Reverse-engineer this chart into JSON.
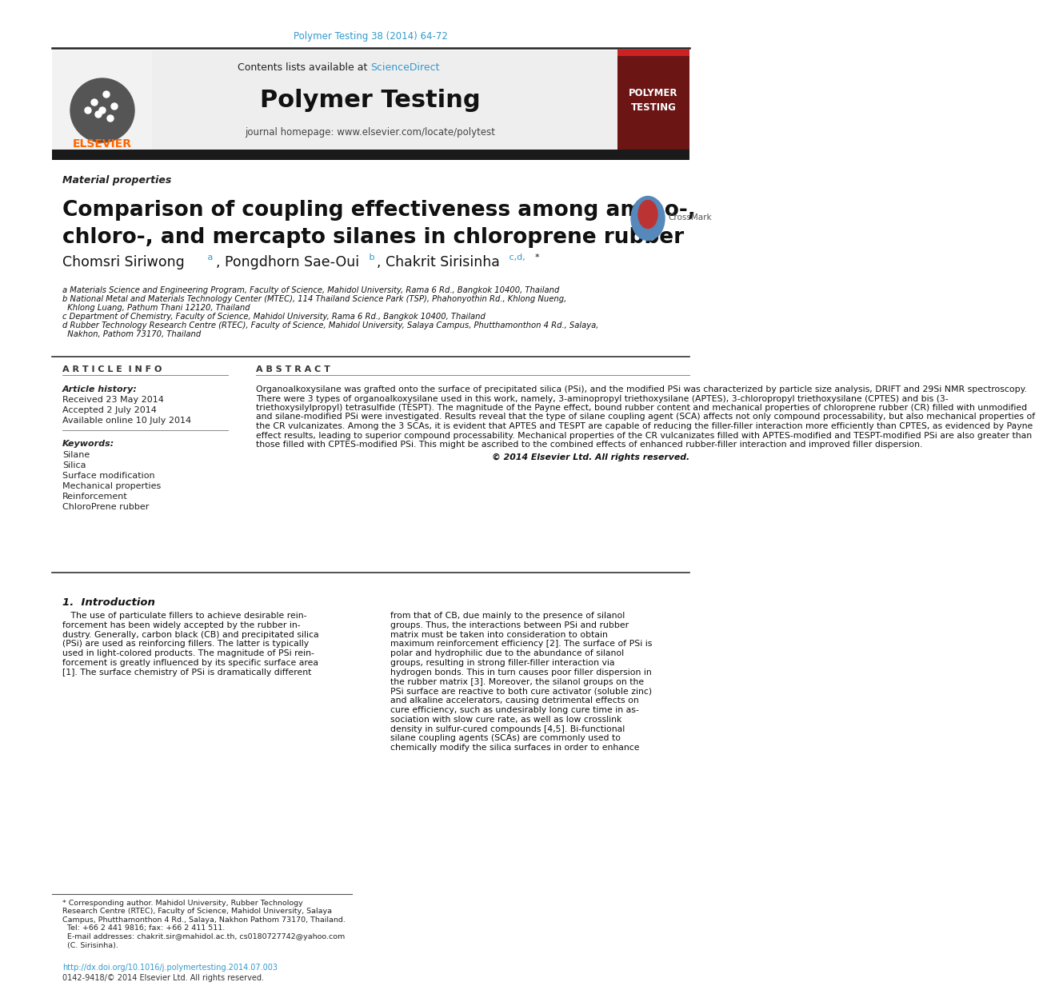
{
  "journal_ref": "Polymer Testing 38 (2014) 64-72",
  "journal_ref_color": "#3399cc",
  "contents_text": "Contents lists available at ",
  "science_direct": "ScienceDirect",
  "science_direct_color": "#3399cc",
  "journal_name": "Polymer Testing",
  "homepage_text": "journal homepage: www.elsevier.com/locate/polytest",
  "section_label": "Material properties",
  "article_title_line1": "Comparison of coupling effectiveness among amino-,",
  "article_title_line2": "chloro-, and mercapto silanes in chloroprene rubber",
  "authors_plain": "Chomsri Siriwong",
  "authors_a": " a",
  "authors_mid1": ", Pongdhorn Sae-Oui",
  "authors_b": " b",
  "authors_mid2": ", Chakrit Sirisinha",
  "authors_cd": " c,d,",
  "authors_star": "*",
  "affil_a": "a Materials Science and Engineering Program, Faculty of Science, Mahidol University, Rama 6 Rd., Bangkok 10400, Thailand",
  "affil_b1": "b National Metal and Materials Technology Center (MTEC), 114 Thailand Science Park (TSP), Phahonyothin Rd., Khlong Nueng,",
  "affil_b2": "  Khlong Luang, Pathum Thani 12120, Thailand",
  "affil_c": "c Department of Chemistry, Faculty of Science, Mahidol University, Rama 6 Rd., Bangkok 10400, Thailand",
  "affil_d1": "d Rubber Technology Research Centre (RTEC), Faculty of Science, Mahidol University, Salaya Campus, Phutthamonthon 4 Rd., Salaya,",
  "affil_d2": "  Nakhon, Pathom 73170, Thailand",
  "article_info_title": "A R T I C L E  I N F O",
  "abstract_title": "A B S T R A C T",
  "article_history_label": "Article history:",
  "received": "Received 23 May 2014",
  "accepted": "Accepted 2 July 2014",
  "available": "Available online 10 July 2014",
  "keywords_label": "Keywords:",
  "keywords": [
    "Silane",
    "Silica",
    "Surface modification",
    "Mechanical properties",
    "Reinforcement",
    "ChloroPrene rubber"
  ],
  "abstract_lines": [
    "Organoalkoxysilane was grafted onto the surface of precipitated silica (PSi), and the modified PSi was characterized by particle size analysis, DRIFT and 29Si NMR spectroscopy.",
    "There were 3 types of organoalkoxysilane used in this work, namely, 3-aminopropyl triethoxysilane (APTES), 3-chloropropyl triethoxysilane (CPTES) and bis (3-",
    "triethoxysilylpropyl) tetrasulfide (TESPT). The magnitude of the Payne effect, bound rubber content and mechanical properties of chloroprene rubber (CR) filled with unmodified",
    "and silane-modified PSi were investigated. Results reveal that the type of silane coupling agent (SCA) affects not only compound processability, but also mechanical properties of",
    "the CR vulcanizates. Among the 3 SCAs, it is evident that APTES and TESPT are capable of reducing the filler-filler interaction more efficiently than CPTES, as evidenced by Payne",
    "effect results, leading to superior compound processability. Mechanical properties of the CR vulcanizates filled with APTES-modified and TESPT-modified PSi are also greater than",
    "those filled with CPTES-modified PSi. This might be ascribed to the combined effects of enhanced rubber-filler interaction and improved filler dispersion."
  ],
  "copyright_text": "© 2014 Elsevier Ltd. All rights reserved.",
  "intro_title": "1.  Introduction",
  "intro_col1_lines": [
    "   The use of particulate fillers to achieve desirable rein-",
    "forcement has been widely accepted by the rubber in-",
    "dustry. Generally, carbon black (CB) and precipitated silica",
    "(PSi) are used as reinforcing fillers. The latter is typically",
    "used in light-colored products. The magnitude of PSi rein-",
    "forcement is greatly influenced by its specific surface area",
    "[1]. The surface chemistry of PSi is dramatically different"
  ],
  "intro_col2_lines": [
    "from that of CB, due mainly to the presence of silanol",
    "groups. Thus, the interactions between PSi and rubber",
    "matrix must be taken into consideration to obtain",
    "maximum reinforcement efficiency [2]. The surface of PSi is",
    "polar and hydrophilic due to the abundance of silanol",
    "groups, resulting in strong filler-filler interaction via",
    "hydrogen bonds. This in turn causes poor filler dispersion in",
    "the rubber matrix [3]. Moreover, the silanol groups on the",
    "PSi surface are reactive to both cure activator (soluble zinc)",
    "and alkaline accelerators, causing detrimental effects on",
    "cure efficiency, such as undesirably long cure time in as-",
    "sociation with slow cure rate, as well as low crosslink",
    "density in sulfur-cured compounds [4,5]. Bi-functional",
    "silane coupling agents (SCAs) are commonly used to",
    "chemically modify the silica surfaces in order to enhance"
  ],
  "footer_line1": "* Corresponding author. Mahidol University, Rubber Technology",
  "footer_line2": "Research Centre (RTEC), Faculty of Science, Mahidol University, Salaya",
  "footer_line3": "Campus, Phutthamonthon 4 Rd., Salaya, Nakhon Pathom 73170, Thailand.",
  "footer_line4": "  Tel: +66 2 441 9816; fax: +66 2 411 511.",
  "footer_line5": "  E-mail addresses: chakrit.sir@mahidol.ac.th, cs0180727742@yahoo.com",
  "footer_line6": "  (C. Sirisinha).",
  "doi_text": "http://dx.doi.org/10.1016/j.polymertesting.2014.07.003",
  "issn_text": "0142-9418/© 2014 Elsevier Ltd. All rights reserved.",
  "bg_color": "#ffffff",
  "dark_bar_color": "#1a1a1a",
  "elsevier_orange": "#ff6600",
  "polymer_testing_badge_bg": "#6b1515"
}
